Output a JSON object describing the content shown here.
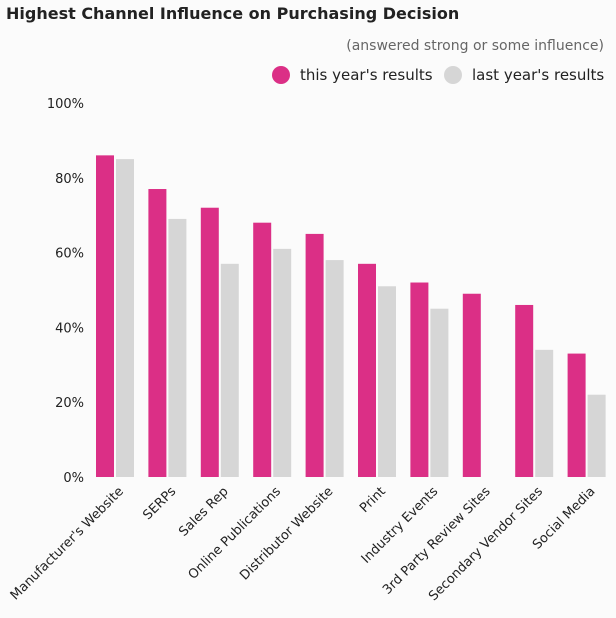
{
  "chart_data": {
    "type": "bar",
    "title": "Highest Channel Influence on Purchasing Decision",
    "subtitle": "(answered strong or some influence)",
    "xlabel": "",
    "ylabel": "",
    "ylim": [
      0,
      100
    ],
    "yticks": [
      "0%",
      "20%",
      "40%",
      "60%",
      "80%",
      "100%"
    ],
    "legend_position": "top-right",
    "categories": [
      "Manufacturer's Website",
      "SERPs",
      "Sales Rep",
      "Online Publications",
      "Distributor Website",
      "Print",
      "Industry Events",
      "3rd Party Review Sites",
      "Secondary Vendor Sites",
      "Social Media"
    ],
    "series": [
      {
        "name": "this year's results",
        "color": "#DB2F86",
        "values": [
          86,
          77,
          72,
          68,
          65,
          57,
          52,
          49,
          46,
          33
        ]
      },
      {
        "name": "last year's results",
        "color": "#D6D6D6",
        "values": [
          85,
          69,
          57,
          61,
          58,
          51,
          45,
          null,
          34,
          22
        ]
      }
    ]
  }
}
